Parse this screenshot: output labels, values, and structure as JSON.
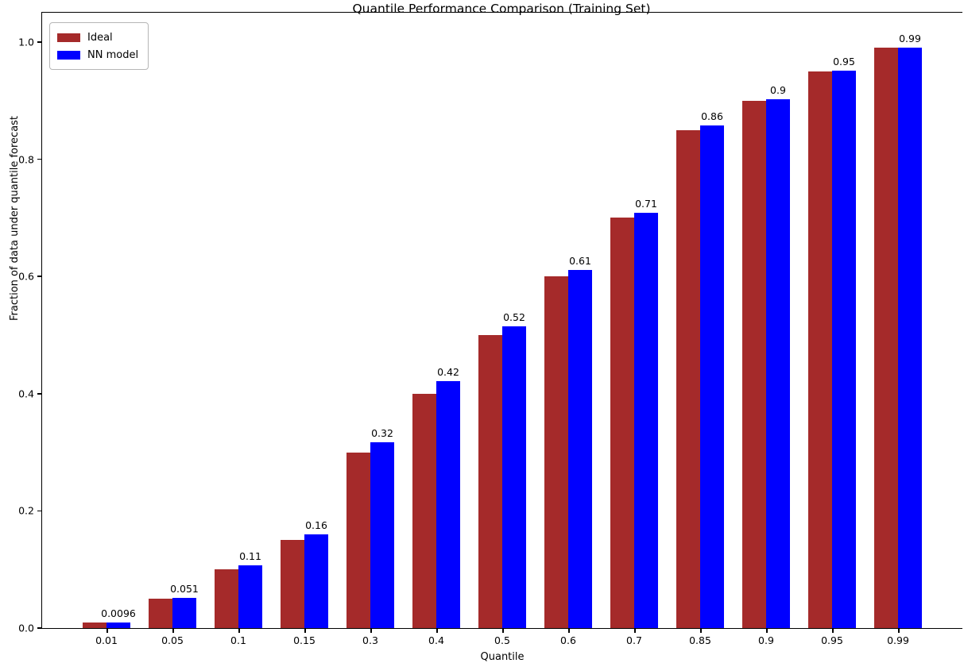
{
  "chart_data": {
    "type": "bar",
    "title": "Quantile Performance Comparison (Training Set)",
    "xlabel": "Quantile",
    "ylabel": "Fraction of data under quantile forecast",
    "categories": [
      "0.01",
      "0.05",
      "0.1",
      "0.15",
      "0.3",
      "0.4",
      "0.5",
      "0.6",
      "0.7",
      "0.85",
      "0.9",
      "0.95",
      "0.99"
    ],
    "series": [
      {
        "name": "Ideal",
        "color": "#A52A2A",
        "values": [
          0.01,
          0.05,
          0.1,
          0.15,
          0.3,
          0.4,
          0.5,
          0.6,
          0.7,
          0.85,
          0.9,
          0.95,
          0.99
        ]
      },
      {
        "name": "NN model",
        "color": "#0000FF",
        "values": [
          0.0096,
          0.051,
          0.107,
          0.16,
          0.317,
          0.422,
          0.515,
          0.611,
          0.709,
          0.858,
          0.903,
          0.951,
          0.99
        ],
        "bar_labels": [
          "0.0096",
          "0.051",
          "0.11",
          "0.16",
          "0.32",
          "0.42",
          "0.52",
          "0.61",
          "0.71",
          "0.86",
          "0.9",
          "0.95",
          "0.99"
        ]
      }
    ],
    "yticks": [
      "0.0",
      "0.2",
      "0.4",
      "0.6",
      "0.8",
      "1.0"
    ],
    "ylim": [
      0,
      1.05
    ],
    "legend_position": "upper left",
    "grid": false,
    "axis_color": "#000000",
    "background_color": "#ffffff"
  }
}
